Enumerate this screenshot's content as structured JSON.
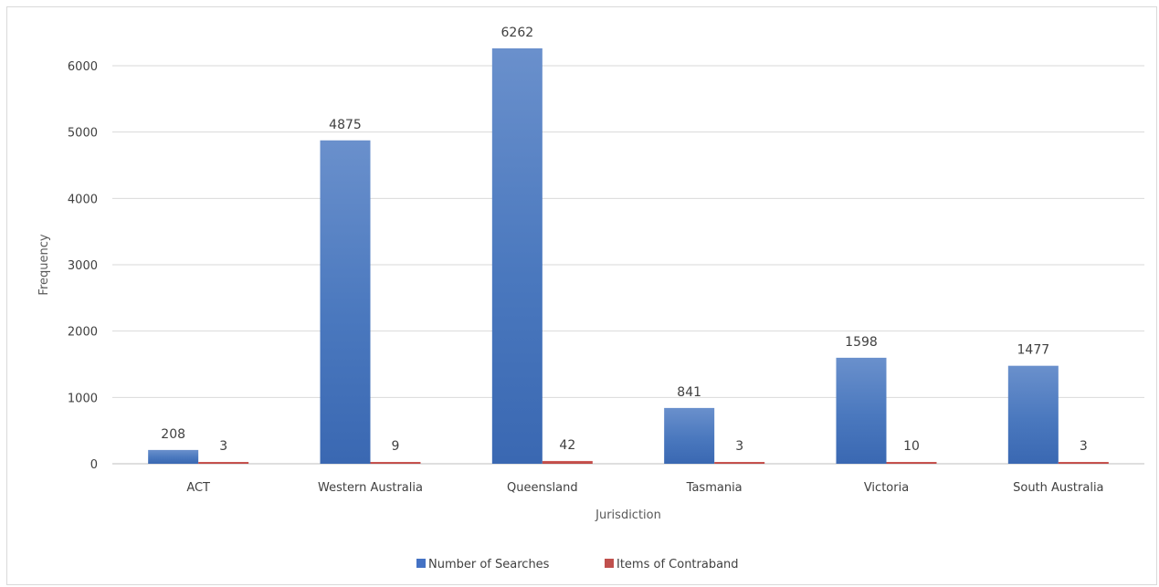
{
  "chart_data": {
    "type": "bar",
    "title": "",
    "xlabel": "Jurisdiction",
    "ylabel": "Frequency",
    "ylim": [
      0,
      6000
    ],
    "yticks": [
      0,
      1000,
      2000,
      3000,
      4000,
      5000,
      6000
    ],
    "grid": true,
    "legend_position": "bottom",
    "categories": [
      "ACT",
      "Western Australia",
      "Queensland",
      "Tasmania",
      "Victoria",
      "South Australia"
    ],
    "series": [
      {
        "name": "Number of Searches",
        "color": "#4472c4",
        "values": [
          208,
          4875,
          6262,
          841,
          1598,
          1477
        ]
      },
      {
        "name": "Items of Contraband",
        "color": "#c0504d",
        "values": [
          3,
          9,
          42,
          3,
          10,
          3
        ]
      }
    ]
  }
}
